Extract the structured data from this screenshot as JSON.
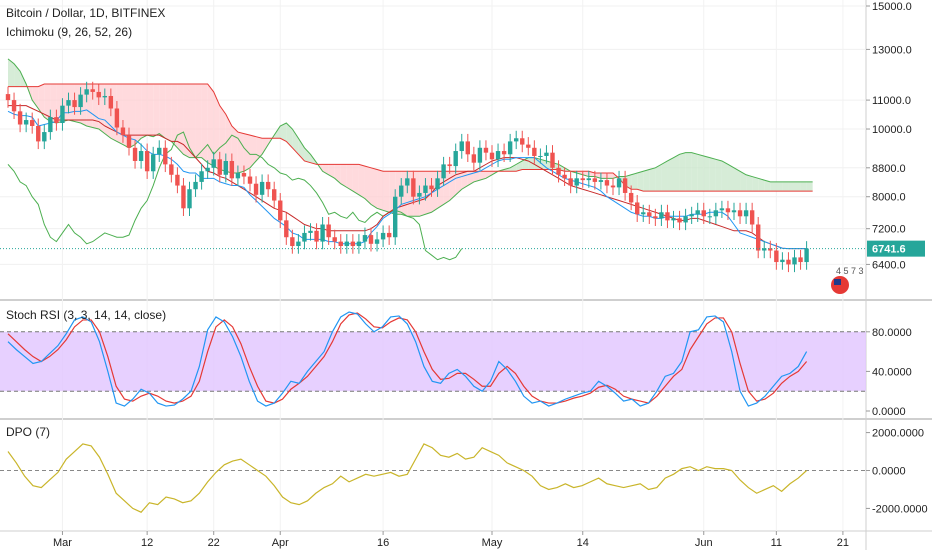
{
  "header": {
    "symbol_line": "Bitcoin / Dollar, 1D, BITFINEX",
    "ichimoku_label": "Ichimoku (9, 26, 52, 26)"
  },
  "colors": {
    "up": "#26a69a",
    "down": "#ef5350",
    "conversion": "#2196f3",
    "base": "#c62828",
    "lagging": "#4caf50",
    "span_a": "#4caf50",
    "span_b": "#e53935",
    "cloud_bull": "#c8e6c9",
    "cloud_bear": "#ffcdd2",
    "stoch_k": "#2196f3",
    "stoch_d": "#e53935",
    "stoch_band": "#e1c4ff",
    "dpo": "#c9b52a",
    "price_label_bg": "#26a69a"
  },
  "chart_data": [
    {
      "type": "candlestick",
      "pane": "price",
      "title": "Bitcoin / Dollar, 1D, BITFINEX",
      "indicator": "Ichimoku (9, 26, 52, 26)",
      "scale": "log",
      "ylim": [
        6000,
        15000
      ],
      "y_ticks": [
        "15000.0",
        "13000.0",
        "11000.0",
        "10000.0",
        "8800.0",
        "8000.0",
        "7200.0",
        "6400.0"
      ],
      "x_ticks": [
        "Mar",
        "12",
        "22",
        "Apr",
        "16",
        "May",
        "14",
        "Jun",
        "11",
        "21"
      ],
      "last_price": "6741.6",
      "close": [
        11000,
        10600,
        10150,
        10300,
        10100,
        9600,
        9900,
        10400,
        10200,
        10800,
        11000,
        10750,
        11200,
        11400,
        11300,
        11100,
        11150,
        10700,
        10050,
        9800,
        9400,
        9000,
        9300,
        8700,
        9200,
        9400,
        8900,
        8600,
        8300,
        7700,
        8200,
        8400,
        8700,
        8800,
        9050,
        8600,
        9000,
        8500,
        8650,
        8550,
        8350,
        8050,
        8400,
        8200,
        7900,
        7400,
        7000,
        6800,
        6900,
        7100,
        7150,
        6900,
        7300,
        7000,
        6900,
        6800,
        6900,
        6800,
        6900,
        7050,
        6850,
        6950,
        7100,
        7000,
        8000,
        8300,
        8500,
        8000,
        8100,
        8300,
        8200,
        8500,
        8900,
        8850,
        9300,
        9600,
        9200,
        8950,
        9400,
        9250,
        9050,
        9300,
        9200,
        9600,
        9700,
        9500,
        9400,
        9150,
        9150,
        9250,
        8800,
        8600,
        8500,
        8300,
        8500,
        8450,
        8500,
        8400,
        8450,
        8300,
        8250,
        8500,
        8100,
        7850,
        7550,
        7600,
        7500,
        7450,
        7600,
        7400,
        7450,
        7350,
        7500,
        7550,
        7650,
        7500,
        7500,
        7650,
        7700,
        7600,
        7650,
        7500,
        7650,
        7300,
        6700,
        6750,
        6700,
        6450,
        6500,
        6400,
        6550,
        6450,
        6741.6
      ],
      "cloud_span_a": [
        12600,
        12400,
        12100,
        11600,
        11000,
        10700,
        10400,
        10250,
        10200,
        10250,
        10300,
        10250,
        10200,
        10100,
        10050,
        10000,
        9850,
        9700,
        9600,
        9500,
        9400,
        9500,
        9700,
        9800,
        9750,
        9850,
        9700,
        9600,
        9400,
        9200,
        9100,
        9100,
        9100,
        8950,
        8850,
        8750,
        8700,
        8650,
        8650,
        8700,
        8800,
        9000,
        9200,
        9500,
        9800,
        10100,
        10200,
        10000,
        9700,
        9400,
        9200,
        8950,
        8700,
        8600,
        8500,
        8350,
        8250,
        8150,
        8050,
        7950,
        7800,
        7700,
        7650,
        7600,
        7550,
        7550,
        7500,
        7500,
        7500,
        7550,
        7600,
        7700,
        7800,
        7900,
        8050,
        8200,
        8300,
        8400,
        8450,
        8500,
        8600,
        8700,
        8750,
        8800,
        8900,
        9000,
        9100,
        9100,
        9050,
        9000,
        8950,
        8900,
        8800,
        8700,
        8650,
        8600,
        8550,
        8550,
        8500,
        8500,
        8500,
        8550,
        8550,
        8600,
        8650,
        8700,
        8750,
        8800,
        8900,
        9000,
        9100,
        9200,
        9250,
        9250,
        9200,
        9150,
        9100,
        9050,
        9000,
        8900,
        8800,
        8700,
        8600,
        8550,
        8500,
        8450,
        8400,
        8400,
        8400,
        8400,
        8400,
        8400,
        8400,
        8400
      ],
      "cloud_span_b": [
        11500,
        11500,
        11500,
        11500,
        11500,
        11500,
        11600,
        11600,
        11600,
        11600,
        11600,
        11600,
        11600,
        11600,
        11600,
        11600,
        11600,
        11600,
        11600,
        11600,
        11600,
        11600,
        11600,
        11600,
        11600,
        11600,
        11600,
        11600,
        11600,
        11600,
        11600,
        11600,
        11600,
        11600,
        11300,
        10800,
        10500,
        10100,
        9900,
        9850,
        9800,
        9750,
        9700,
        9700,
        9700,
        9700,
        9600,
        9400,
        9200,
        9000,
        8950,
        8900,
        8900,
        8900,
        8900,
        8900,
        8900,
        8900,
        8900,
        8850,
        8800,
        8750,
        8700,
        8700,
        8700,
        8700,
        8700,
        8700,
        8700,
        8700,
        8700,
        8700,
        8700,
        8700,
        8700,
        8700,
        8700,
        8700,
        8700,
        8700,
        8700,
        8700,
        8700,
        8700,
        8700,
        8750,
        8750,
        8750,
        8750,
        8750,
        8750,
        8750,
        8700,
        8700,
        8700,
        8700,
        8700,
        8650,
        8650,
        8650,
        8650,
        8500,
        8300,
        8200,
        8200,
        8150,
        8150,
        8150,
        8150,
        8150,
        8150,
        8150,
        8150,
        8150,
        8150,
        8150,
        8150,
        8150,
        8150,
        8150,
        8150,
        8150,
        8150,
        8150,
        8150,
        8150,
        8150,
        8150,
        8150,
        8150,
        8150,
        8150,
        8150,
        8150
      ],
      "conversion_line": [
        10600,
        10500,
        10450,
        10450,
        10400,
        10100,
        10150,
        10200,
        10250,
        10550,
        10550,
        10600,
        10600,
        10650,
        10500,
        10350,
        10300,
        10100,
        9900,
        9800,
        9700,
        9650,
        9500,
        9300,
        9200,
        9200,
        9150,
        9050,
        8900,
        8700,
        8650,
        8650,
        8500,
        8500,
        8500,
        8400,
        8350,
        8300,
        8300,
        8250,
        8050,
        7900,
        7750,
        7600,
        7450,
        7350,
        7250,
        7100,
        7050,
        6950,
        6950,
        6950,
        6950,
        6900,
        6900,
        6850,
        6850,
        6850,
        6850,
        6900,
        7100,
        7250,
        7450,
        7550,
        7650,
        7800,
        7850,
        7900,
        7950,
        8000,
        8100,
        8200,
        8300,
        8400,
        8500,
        8550,
        8600,
        8650,
        8700,
        8800,
        8900,
        9000,
        9050,
        9050,
        9100,
        9100,
        9100,
        9100,
        8950,
        8800,
        8700,
        8600,
        8500,
        8450,
        8400,
        8350,
        8300,
        8250,
        8150,
        8000,
        7900,
        7800,
        7700,
        7600,
        7550,
        7500,
        7500,
        7450,
        7450,
        7500,
        7500,
        7500,
        7500,
        7550,
        7550,
        7550,
        7600,
        7600,
        7600,
        7500,
        7300,
        7100,
        7050,
        7000,
        6950,
        6900,
        6850,
        6800,
        6750,
        6741.6,
        6741.6,
        6741.6,
        6741.6
      ],
      "base_line": [
        10800,
        10800,
        10800,
        10800,
        10700,
        10600,
        10500,
        10400,
        10300,
        10300,
        10300,
        10300,
        10300,
        10300,
        10300,
        10250,
        10100,
        10000,
        9900,
        9800,
        9800,
        9800,
        9800,
        9800,
        9800,
        9800,
        9700,
        9600,
        9600,
        9500,
        9300,
        9100,
        8900,
        8700,
        8650,
        8550,
        8500,
        8400,
        8300,
        8200,
        8100,
        8000,
        7900,
        7800,
        7700,
        7650,
        7600,
        7500,
        7400,
        7300,
        7250,
        7200,
        7200,
        7150,
        7150,
        7150,
        7150,
        7150,
        7150,
        7150,
        7200,
        7300,
        7500,
        7600,
        7700,
        7750,
        7800,
        7850,
        7900,
        7950,
        8100,
        8300,
        8400,
        8500,
        8600,
        8650,
        8700,
        8700,
        8800,
        8900,
        9000,
        9050,
        9100,
        9100,
        9100,
        9050,
        9000,
        8900,
        8800,
        8700,
        8600,
        8500,
        8400,
        8300,
        8250,
        8200,
        8150,
        8100,
        8050,
        8000,
        7950,
        7900,
        7850,
        7800,
        7750,
        7700,
        7650,
        7600,
        7550,
        7500,
        7450,
        7400,
        7400,
        7450,
        7450,
        7400,
        7350,
        7300,
        7250,
        7200,
        7150,
        7150,
        7150,
        7100,
        7000,
        6900,
        6850,
        6800,
        6750,
        6741.6,
        6741.6,
        6741.6,
        6741.6
      ],
      "lagging_span": [
        8900,
        8700,
        8400,
        8300,
        8000,
        7800,
        7300,
        7000,
        6900,
        7100,
        7300,
        7100,
        7000,
        6850,
        6900,
        7000,
        7100,
        7050,
        7000,
        7000,
        7050,
        7400,
        7700,
        7900,
        8300,
        8800,
        9200,
        9350,
        9800,
        9900,
        9400,
        9100,
        9300,
        9500,
        9200,
        9400,
        9550,
        9800,
        9700,
        9400,
        9200,
        9200,
        9100,
        8900,
        8800,
        8650,
        8600,
        8450,
        8500,
        8450,
        8300,
        8100,
        7850,
        7550,
        7600,
        7500,
        7450,
        7600,
        7400,
        7350,
        7500,
        7600,
        7500,
        7600,
        7650,
        7600,
        7500,
        7450,
        7300,
        6700,
        6600,
        6500,
        6550,
        6500,
        6550,
        6741.6
      ],
      "lagging_start_index": 0
    },
    {
      "type": "line",
      "pane": "stoch_rsi",
      "title": "Stoch RSI (3, 3, 14, 14, close)",
      "ylim": [
        0,
        100
      ],
      "band": [
        20,
        80
      ],
      "y_ticks": [
        "80.0000",
        "40.0000",
        "0.0000"
      ],
      "series": [
        {
          "name": "K",
          "values": [
            70,
            62,
            55,
            48,
            50,
            58,
            66,
            78,
            92,
            95,
            90,
            70,
            40,
            8,
            5,
            12,
            22,
            18,
            8,
            5,
            6,
            12,
            20,
            45,
            82,
            95,
            90,
            75,
            55,
            30,
            10,
            5,
            8,
            18,
            30,
            28,
            40,
            50,
            60,
            80,
            95,
            100,
            98,
            88,
            80,
            85,
            95,
            96,
            88,
            70,
            45,
            30,
            28,
            38,
            42,
            35,
            25,
            20,
            30,
            50,
            42,
            30,
            15,
            8,
            10,
            5,
            8,
            12,
            15,
            18,
            20,
            30,
            25,
            18,
            10,
            12,
            5,
            8,
            20,
            35,
            38,
            50,
            80,
            82,
            95,
            96,
            90,
            60,
            20,
            5,
            8,
            15,
            25,
            35,
            38,
            45,
            60
          ]
        },
        {
          "name": "D",
          "values": [
            78,
            70,
            62,
            55,
            50,
            55,
            62,
            72,
            85,
            92,
            92,
            80,
            55,
            25,
            12,
            10,
            15,
            18,
            15,
            10,
            8,
            10,
            15,
            30,
            60,
            85,
            92,
            85,
            68,
            45,
            25,
            10,
            8,
            12,
            22,
            28,
            35,
            45,
            55,
            70,
            88,
            97,
            99,
            93,
            85,
            84,
            90,
            94,
            92,
            80,
            60,
            42,
            32,
            33,
            38,
            38,
            32,
            25,
            25,
            38,
            45,
            38,
            25,
            15,
            10,
            8,
            8,
            10,
            13,
            15,
            18,
            24,
            26,
            22,
            15,
            12,
            10,
            8,
            15,
            25,
            35,
            42,
            62,
            75,
            88,
            94,
            94,
            80,
            48,
            20,
            10,
            12,
            18,
            28,
            35,
            40,
            50
          ]
        }
      ]
    },
    {
      "type": "line",
      "pane": "dpo",
      "title": "DPO (7)",
      "ylim": [
        -2400,
        2400
      ],
      "y_ticks": [
        "2000.0000",
        "0.0000",
        "-2000.0000"
      ],
      "series": [
        {
          "name": "DPO",
          "values": [
            1000,
            400,
            -300,
            -800,
            -900,
            -500,
            -100,
            600,
            1000,
            1400,
            1300,
            700,
            -200,
            -1200,
            -1600,
            -2000,
            -2200,
            -1700,
            -1800,
            -1400,
            -1500,
            -1700,
            -1600,
            -1200,
            -600,
            -100,
            300,
            500,
            600,
            300,
            0,
            -300,
            -800,
            -1400,
            -1700,
            -1800,
            -1600,
            -1200,
            -900,
            -700,
            -300,
            -600,
            -400,
            -200,
            -300,
            -200,
            -100,
            -300,
            -200,
            600,
            1400,
            1200,
            800,
            700,
            900,
            600,
            700,
            1200,
            1000,
            800,
            400,
            200,
            0,
            -300,
            -800,
            -1000,
            -900,
            -700,
            -900,
            -800,
            -600,
            -400,
            -700,
            -800,
            -900,
            -800,
            -700,
            -1000,
            -900,
            -400,
            -200,
            100,
            200,
            0,
            200,
            100,
            100,
            0,
            -500,
            -900,
            -1200,
            -1000,
            -800,
            -1100,
            -700,
            -400,
            0
          ]
        }
      ]
    }
  ],
  "indicators": {
    "stoch_label": "Stoch RSI (3, 3, 14, 14, close)",
    "dpo_label": "DPO (7)"
  },
  "badge": {
    "text": "4  5  7  3"
  }
}
